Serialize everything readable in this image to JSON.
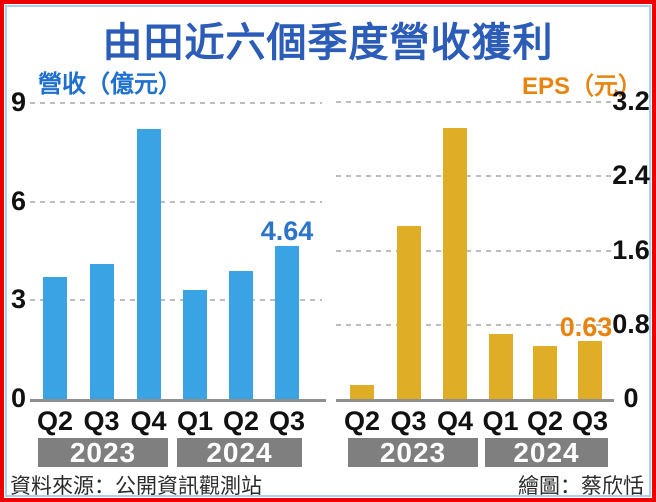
{
  "title": "由田近六個季度營收獲利",
  "footer": {
    "source": "資料來源：公開資訊觀測站",
    "credit": "繪圖：蔡欣恬"
  },
  "colors": {
    "frame_border": "#ee0000",
    "inner_border": "#abd0e8",
    "title_text": "#2b5cb8",
    "revenue_bar": "#39a3e4",
    "revenue_label": "#1e70ce",
    "revenue_callout": "#2c74c8",
    "eps_bar": "#dfad26",
    "eps_label": "#e8830e",
    "eps_callout": "#e8830e",
    "gridline": "#bdbdbd",
    "axis_line": "#8f8f8f",
    "year_band_bg": "#7f7f7f",
    "year_band_text": "#ffffff",
    "tick_text": "#111111",
    "footer_text": "#2b2b2b"
  },
  "chart_data": [
    {
      "type": "bar",
      "title": "營收（億元）",
      "categories": [
        "Q2",
        "Q3",
        "Q4",
        "Q1",
        "Q2",
        "Q3"
      ],
      "values": [
        3.7,
        4.1,
        8.2,
        3.3,
        3.9,
        4.64
      ],
      "ylim": [
        0,
        9
      ],
      "y_ticks": [
        9,
        6,
        3,
        0
      ],
      "grid": "dashed-horizontal",
      "legend": "none",
      "bar_color_key": "revenue_bar",
      "year_groups": [
        {
          "label": "2023",
          "quarters": [
            "Q2",
            "Q3",
            "Q4"
          ]
        },
        {
          "label": "2024",
          "quarters": [
            "Q1",
            "Q2",
            "Q3"
          ]
        }
      ],
      "data_label": {
        "index": 5,
        "text": "4.64"
      }
    },
    {
      "type": "bar",
      "title": "EPS（元）",
      "categories": [
        "Q2",
        "Q3",
        "Q4",
        "Q1",
        "Q2",
        "Q3"
      ],
      "values": [
        0.15,
        1.86,
        2.92,
        0.7,
        0.57,
        0.63
      ],
      "ylim": [
        0,
        3.2
      ],
      "y_ticks": [
        3.2,
        2.4,
        1.6,
        0.8,
        0
      ],
      "grid": "dashed-horizontal",
      "legend": "none",
      "bar_color_key": "eps_bar",
      "year_groups": [
        {
          "label": "2023",
          "quarters": [
            "Q2",
            "Q3",
            "Q4"
          ]
        },
        {
          "label": "2024",
          "quarters": [
            "Q1",
            "Q2",
            "Q3"
          ]
        }
      ],
      "data_label": {
        "index": 5,
        "text": "0.63"
      }
    }
  ]
}
